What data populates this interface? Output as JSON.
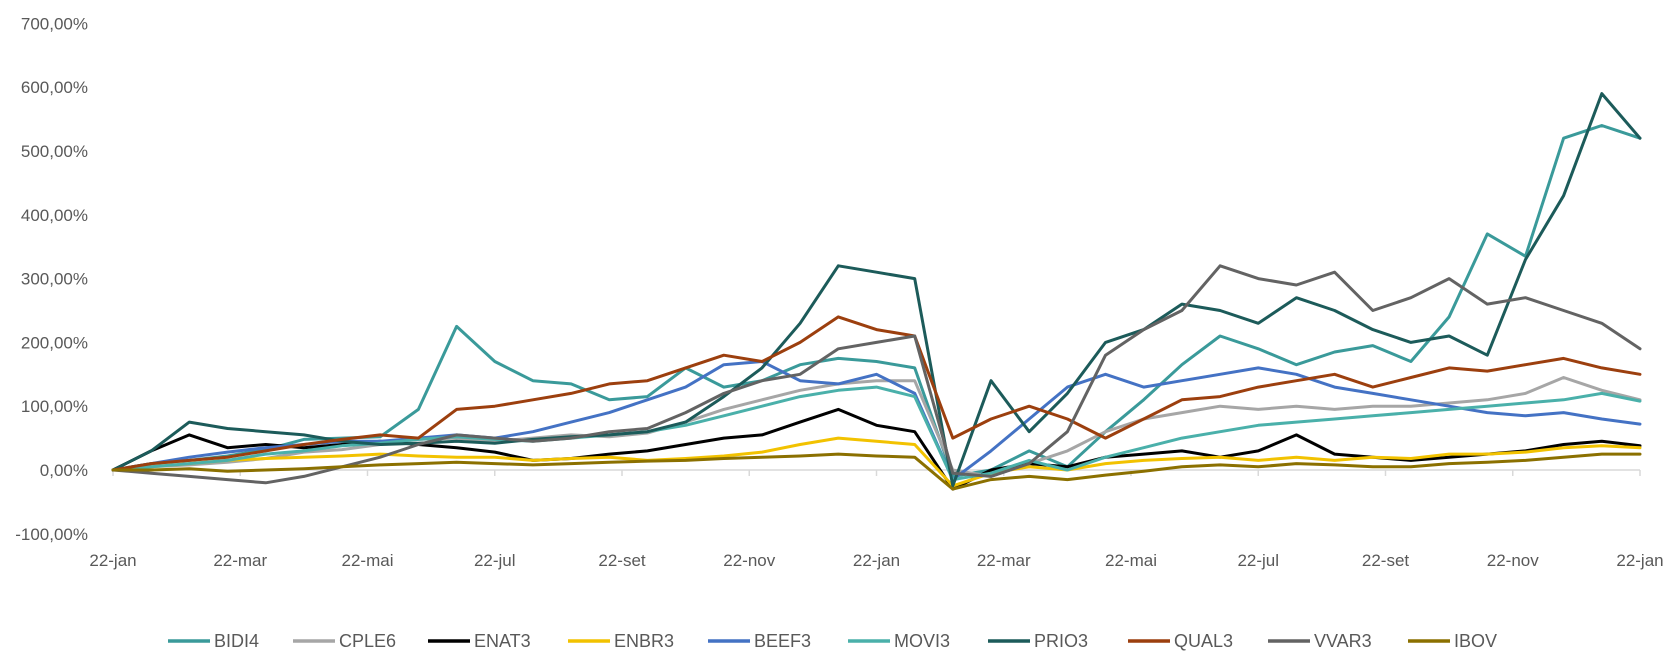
{
  "chart_data": {
    "type": "line",
    "title": "",
    "xlabel": "",
    "ylabel": "",
    "ylim": [
      -100,
      700
    ],
    "y_ticks": [
      -100,
      0,
      100,
      200,
      300,
      400,
      500,
      600,
      700
    ],
    "y_tick_labels": [
      "-100,00%",
      "0,00%",
      "100,00%",
      "200,00%",
      "300,00%",
      "400,00%",
      "500,00%",
      "600,00%",
      "700,00%"
    ],
    "x_tick_labels": [
      "22-jan",
      "22-mar",
      "22-mai",
      "22-jul",
      "22-set",
      "22-nov",
      "22-jan",
      "22-mar",
      "22-mai",
      "22-jul",
      "22-set",
      "22-nov",
      "22-jan"
    ],
    "grid": false,
    "legend_position": "bottom",
    "series": [
      {
        "name": "BIDI4",
        "color": "#3a9a9a",
        "values": [
          0,
          10,
          15,
          22,
          32,
          48,
          50,
          52,
          95,
          225,
          170,
          140,
          135,
          110,
          115,
          160,
          130,
          140,
          165,
          175,
          170,
          160,
          -10,
          0,
          30,
          5,
          60,
          110,
          165,
          210,
          190,
          165,
          185,
          195,
          170,
          240,
          370,
          335,
          520,
          540,
          520
        ]
      },
      {
        "name": "CPLE6",
        "color": "#a6a6a6",
        "values": [
          0,
          5,
          8,
          12,
          18,
          28,
          32,
          40,
          48,
          50,
          45,
          50,
          55,
          52,
          58,
          75,
          95,
          110,
          125,
          135,
          140,
          140,
          0,
          -10,
          10,
          30,
          60,
          80,
          90,
          100,
          95,
          100,
          95,
          100,
          100,
          105,
          110,
          120,
          145,
          125,
          110
        ]
      },
      {
        "name": "ENAT3",
        "color": "#000000",
        "values": [
          0,
          30,
          55,
          35,
          40,
          35,
          40,
          45,
          40,
          35,
          28,
          15,
          18,
          25,
          30,
          40,
          50,
          55,
          75,
          95,
          70,
          60,
          -30,
          0,
          10,
          5,
          20,
          25,
          30,
          20,
          30,
          55,
          25,
          20,
          15,
          20,
          25,
          30,
          40,
          45,
          38
        ]
      },
      {
        "name": "ENBR3",
        "color": "#f2c200",
        "values": [
          0,
          5,
          10,
          15,
          18,
          20,
          22,
          25,
          22,
          20,
          20,
          15,
          18,
          20,
          15,
          18,
          22,
          28,
          40,
          50,
          45,
          40,
          -25,
          -5,
          5,
          0,
          10,
          15,
          18,
          20,
          15,
          20,
          15,
          20,
          18,
          25,
          25,
          28,
          35,
          38,
          35
        ]
      },
      {
        "name": "BEEF3",
        "color": "#4472c4",
        "values": [
          0,
          10,
          20,
          28,
          35,
          40,
          45,
          45,
          50,
          55,
          50,
          60,
          75,
          90,
          110,
          130,
          165,
          170,
          140,
          135,
          150,
          120,
          -15,
          30,
          80,
          130,
          150,
          130,
          140,
          150,
          160,
          150,
          130,
          120,
          110,
          100,
          90,
          85,
          90,
          80,
          72
        ]
      },
      {
        "name": "MOVI3",
        "color": "#4ab0aa",
        "values": [
          0,
          5,
          10,
          15,
          25,
          30,
          38,
          42,
          48,
          52,
          48,
          45,
          50,
          55,
          60,
          70,
          85,
          100,
          115,
          125,
          130,
          115,
          -15,
          -5,
          15,
          0,
          20,
          35,
          50,
          60,
          70,
          75,
          80,
          85,
          90,
          95,
          100,
          105,
          110,
          120,
          108
        ]
      },
      {
        "name": "PRIO3",
        "color": "#1c5b5a",
        "values": [
          0,
          30,
          75,
          65,
          60,
          55,
          45,
          40,
          42,
          45,
          42,
          48,
          52,
          55,
          60,
          75,
          115,
          160,
          230,
          320,
          310,
          300,
          -25,
          140,
          60,
          120,
          200,
          220,
          260,
          250,
          230,
          270,
          250,
          220,
          200,
          210,
          180,
          330,
          430,
          590,
          520
        ]
      },
      {
        "name": "QUAL3",
        "color": "#9c3f0e",
        "values": [
          0,
          10,
          15,
          20,
          30,
          40,
          48,
          55,
          50,
          95,
          100,
          110,
          120,
          135,
          140,
          160,
          180,
          170,
          200,
          240,
          220,
          210,
          50,
          80,
          100,
          80,
          50,
          80,
          110,
          115,
          130,
          140,
          150,
          130,
          145,
          160,
          155,
          165,
          175,
          160,
          150
        ]
      },
      {
        "name": "VVAR3",
        "color": "#636363",
        "values": [
          0,
          -5,
          -10,
          -15,
          -20,
          -10,
          5,
          20,
          40,
          55,
          50,
          45,
          50,
          60,
          65,
          90,
          120,
          140,
          150,
          190,
          200,
          210,
          -5,
          -10,
          10,
          60,
          180,
          220,
          250,
          320,
          300,
          290,
          310,
          250,
          270,
          300,
          260,
          270,
          250,
          230,
          190
        ]
      },
      {
        "name": "IBOV",
        "color": "#8b7000",
        "values": [
          0,
          0,
          2,
          -2,
          0,
          2,
          5,
          8,
          10,
          12,
          10,
          8,
          10,
          12,
          14,
          15,
          18,
          20,
          22,
          25,
          22,
          20,
          -30,
          -15,
          -10,
          -15,
          -8,
          -2,
          5,
          8,
          5,
          10,
          8,
          5,
          5,
          10,
          12,
          15,
          20,
          25,
          25
        ]
      }
    ]
  }
}
